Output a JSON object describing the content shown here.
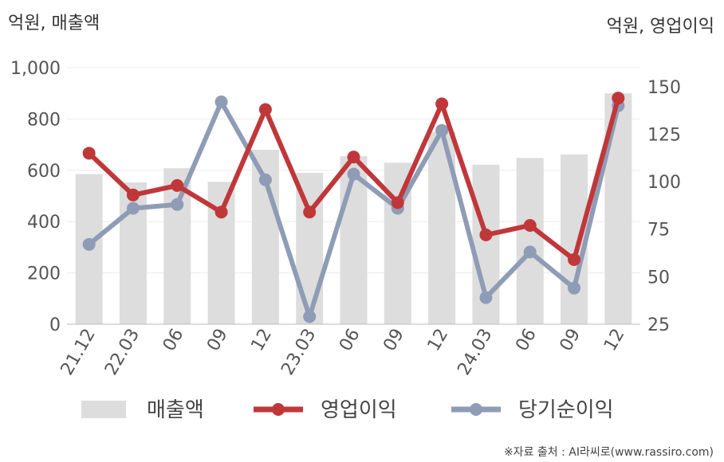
{
  "chart_data": {
    "type": "bar+line",
    "left_unit": "억원, 매출액",
    "right_unit": "억원, 영업이익",
    "categories": [
      "21.12",
      "22.03",
      "06",
      "09",
      "12",
      "23.03",
      "06",
      "09",
      "12",
      "24.03",
      "06",
      "09",
      "12"
    ],
    "y_left": {
      "ylim": [
        0,
        1000
      ],
      "ticks": [
        "0",
        "200",
        "400",
        "600",
        "800",
        "1,000"
      ]
    },
    "y_right": {
      "ylim": [
        25,
        160
      ],
      "ticks": [
        "25",
        "50",
        "75",
        "100",
        "125",
        "150"
      ]
    },
    "series": [
      {
        "name": "매출액",
        "type": "bar",
        "axis": "left",
        "color": "#dddddd",
        "values": [
          585,
          553,
          608,
          555,
          680,
          590,
          655,
          630,
          750,
          622,
          648,
          662,
          900
        ]
      },
      {
        "name": "영업이익",
        "type": "line",
        "axis": "right",
        "color": "#c0373a",
        "values": [
          115,
          93,
          98,
          84,
          138,
          84,
          113,
          89,
          141,
          72,
          77,
          59,
          144
        ]
      },
      {
        "name": "당기순이익",
        "type": "line",
        "axis": "right",
        "color": "#8f9cb6",
        "values": [
          67,
          86,
          88,
          142,
          101,
          29,
          104,
          86,
          127,
          39,
          63,
          44,
          140
        ]
      }
    ],
    "legend_position": "bottom",
    "grid": true
  },
  "source_note": "※자료 출처 : AI라씨로(www.rassiro.com)"
}
